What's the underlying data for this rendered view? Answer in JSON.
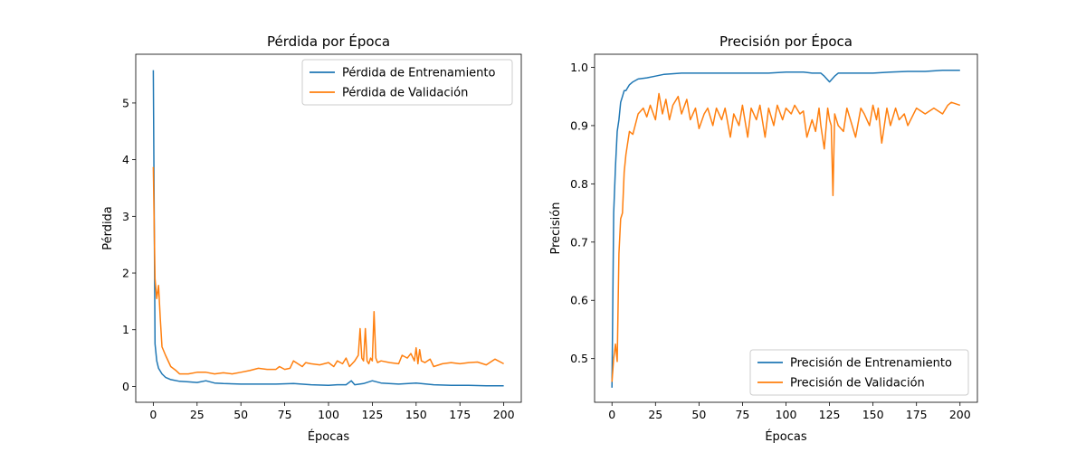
{
  "chart_data": [
    {
      "type": "line",
      "title": "Pérdida por Época",
      "xlabel": "Épocas",
      "ylabel": "Pérdida",
      "xlim": [
        -10,
        210
      ],
      "ylim": [
        -0.28,
        5.86
      ],
      "xticks": [
        0,
        25,
        50,
        75,
        100,
        125,
        150,
        175,
        200
      ],
      "yticks": [
        0,
        1,
        2,
        3,
        4,
        5
      ],
      "legend_position": "top-right",
      "grid": false,
      "series": [
        {
          "name": "Pérdida de Entrenamiento",
          "color": "#1f77b4",
          "x": [
            0,
            1,
            2,
            3,
            5,
            7,
            10,
            15,
            20,
            25,
            30,
            35,
            40,
            50,
            60,
            70,
            80,
            90,
            100,
            105,
            110,
            113,
            115,
            120,
            125,
            130,
            140,
            150,
            160,
            170,
            180,
            190,
            200
          ],
          "values": [
            5.58,
            0.75,
            0.45,
            0.32,
            0.22,
            0.16,
            0.12,
            0.09,
            0.08,
            0.07,
            0.1,
            0.06,
            0.05,
            0.04,
            0.04,
            0.04,
            0.05,
            0.03,
            0.02,
            0.03,
            0.03,
            0.1,
            0.03,
            0.05,
            0.1,
            0.06,
            0.04,
            0.06,
            0.03,
            0.02,
            0.02,
            0.01,
            0.01
          ]
        },
        {
          "name": "Pérdida de Validación",
          "color": "#ff7f0e",
          "x": [
            0,
            1,
            2,
            3,
            4,
            5,
            7,
            10,
            13,
            15,
            20,
            25,
            30,
            35,
            40,
            45,
            50,
            55,
            60,
            65,
            70,
            72,
            75,
            78,
            80,
            85,
            87,
            90,
            95,
            100,
            103,
            105,
            108,
            110,
            112,
            115,
            117,
            118,
            119,
            120,
            121,
            122,
            123,
            124,
            125,
            126,
            127,
            128,
            130,
            135,
            140,
            142,
            145,
            147,
            149,
            150,
            151,
            152,
            153,
            155,
            158,
            160,
            165,
            170,
            175,
            180,
            185,
            190,
            195,
            200
          ],
          "values": [
            3.87,
            1.9,
            1.55,
            1.78,
            1.2,
            0.7,
            0.55,
            0.35,
            0.28,
            0.22,
            0.22,
            0.25,
            0.25,
            0.22,
            0.24,
            0.22,
            0.25,
            0.28,
            0.32,
            0.3,
            0.3,
            0.35,
            0.3,
            0.32,
            0.45,
            0.35,
            0.42,
            0.4,
            0.38,
            0.42,
            0.35,
            0.45,
            0.4,
            0.5,
            0.35,
            0.45,
            0.55,
            1.02,
            0.5,
            0.45,
            1.02,
            0.45,
            0.4,
            0.5,
            0.45,
            1.32,
            0.5,
            0.42,
            0.45,
            0.42,
            0.4,
            0.55,
            0.5,
            0.58,
            0.45,
            0.68,
            0.4,
            0.65,
            0.45,
            0.42,
            0.48,
            0.35,
            0.4,
            0.42,
            0.4,
            0.42,
            0.43,
            0.38,
            0.48,
            0.4
          ]
        }
      ]
    },
    {
      "type": "line",
      "title": "Precisión por Época",
      "xlabel": "Épocas",
      "ylabel": "Precisión",
      "xlim": [
        -10,
        210
      ],
      "ylim": [
        0.425,
        1.0225
      ],
      "xticks": [
        0,
        25,
        50,
        75,
        100,
        125,
        150,
        175,
        200
      ],
      "yticks": [
        0.5,
        0.6,
        0.7,
        0.8,
        0.9,
        1.0
      ],
      "legend_position": "bottom-right",
      "grid": false,
      "series": [
        {
          "name": "Precisión de Entrenamiento",
          "color": "#1f77b4",
          "x": [
            0,
            1,
            2,
            3,
            4,
            5,
            6,
            7,
            8,
            10,
            12,
            15,
            20,
            25,
            30,
            40,
            50,
            60,
            70,
            80,
            90,
            100,
            110,
            115,
            120,
            122,
            125,
            128,
            130,
            140,
            150,
            160,
            170,
            180,
            190,
            200
          ],
          "values": [
            0.45,
            0.75,
            0.83,
            0.89,
            0.91,
            0.94,
            0.95,
            0.96,
            0.96,
            0.97,
            0.975,
            0.98,
            0.982,
            0.985,
            0.988,
            0.99,
            0.99,
            0.99,
            0.99,
            0.99,
            0.99,
            0.992,
            0.992,
            0.99,
            0.99,
            0.985,
            0.975,
            0.985,
            0.99,
            0.99,
            0.99,
            0.992,
            0.993,
            0.993,
            0.995,
            0.995
          ]
        },
        {
          "name": "Precisión de Validación",
          "color": "#ff7f0e",
          "x": [
            0,
            1,
            2,
            3,
            4,
            5,
            6,
            7,
            8,
            10,
            12,
            15,
            18,
            20,
            22,
            25,
            27,
            29,
            31,
            33,
            35,
            38,
            40,
            43,
            45,
            48,
            50,
            53,
            55,
            58,
            60,
            63,
            65,
            68,
            70,
            73,
            75,
            78,
            80,
            83,
            85,
            88,
            90,
            93,
            95,
            98,
            100,
            103,
            105,
            108,
            110,
            112,
            115,
            117,
            119,
            120,
            122,
            124,
            125,
            126,
            127,
            128,
            130,
            133,
            135,
            138,
            140,
            143,
            145,
            148,
            150,
            152,
            153,
            155,
            158,
            160,
            163,
            165,
            168,
            170,
            175,
            180,
            185,
            190,
            193,
            195,
            200
          ],
          "values": [
            0.46,
            0.5,
            0.525,
            0.495,
            0.68,
            0.74,
            0.75,
            0.82,
            0.85,
            0.89,
            0.885,
            0.92,
            0.93,
            0.915,
            0.935,
            0.91,
            0.955,
            0.92,
            0.945,
            0.91,
            0.935,
            0.95,
            0.92,
            0.945,
            0.91,
            0.93,
            0.895,
            0.92,
            0.93,
            0.9,
            0.93,
            0.91,
            0.93,
            0.88,
            0.92,
            0.9,
            0.935,
            0.88,
            0.93,
            0.91,
            0.935,
            0.88,
            0.93,
            0.9,
            0.935,
            0.91,
            0.93,
            0.92,
            0.935,
            0.92,
            0.925,
            0.88,
            0.91,
            0.89,
            0.93,
            0.9,
            0.86,
            0.93,
            0.91,
            0.9,
            0.78,
            0.92,
            0.9,
            0.89,
            0.93,
            0.9,
            0.88,
            0.93,
            0.92,
            0.9,
            0.935,
            0.91,
            0.93,
            0.87,
            0.93,
            0.9,
            0.93,
            0.91,
            0.92,
            0.9,
            0.93,
            0.92,
            0.93,
            0.92,
            0.935,
            0.94,
            0.935
          ]
        }
      ]
    }
  ]
}
